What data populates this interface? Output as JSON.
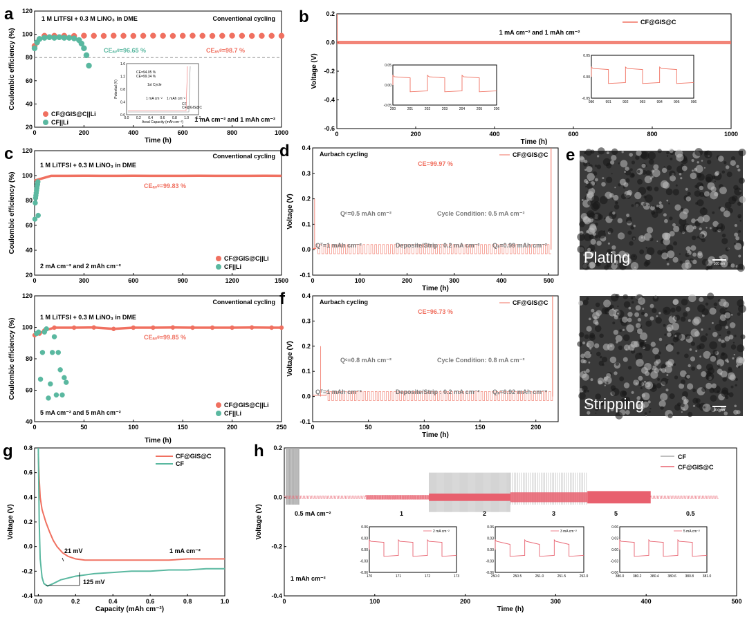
{
  "chart_data": [
    {
      "id": "a",
      "panel_letter": "a",
      "type": "scatter",
      "ylabel": "Coulombic efficiency (%)",
      "xlabel": "Time (h)",
      "xlim": [
        0,
        1000
      ],
      "ylim": [
        20,
        120
      ],
      "xticks": [
        0,
        200,
        400,
        600,
        800,
        1000
      ],
      "yticks": [
        20,
        40,
        60,
        80,
        100,
        120
      ],
      "annotations": {
        "electrolyte": "1 M  LiTFSI + 0.3 M LiNO₃ in DME",
        "mode": "Conventional cycling",
        "ce_cf": "CEₐᵥᵍ=96.65 %",
        "ce_gis": "CEₐᵥᵍ=98.7 %",
        "condition": "1 mA cm⁻² and 1 mAh cm⁻²"
      },
      "reference_line": 80,
      "series": [
        {
          "name": "CF@GIS@C||Li",
          "color": "#f07060",
          "x": [
            0,
            40,
            80,
            120,
            160,
            200,
            240,
            280,
            320,
            360,
            400,
            440,
            480,
            520,
            560,
            600,
            640,
            680,
            720,
            760,
            800,
            840,
            880,
            920,
            960,
            1000
          ],
          "y": [
            90,
            98.7,
            98.7,
            98.7,
            98.6,
            98.8,
            98.7,
            98.6,
            98.8,
            98.7,
            98.6,
            98.7,
            98.8,
            98.7,
            98.6,
            98.7,
            98.8,
            98.7,
            98.6,
            98.7,
            98.8,
            98.7,
            98.6,
            98.7,
            98.7,
            98.7
          ]
        },
        {
          "name": "CF||Li",
          "color": "#5ab8a0",
          "x": [
            0,
            10,
            20,
            40,
            60,
            80,
            100,
            120,
            140,
            160,
            180,
            190,
            200,
            210,
            220
          ],
          "y": [
            88,
            93,
            96,
            97,
            97.5,
            97,
            97.5,
            97,
            97,
            96.5,
            95,
            92,
            88,
            82,
            73
          ]
        }
      ],
      "inset": {
        "title": "1st Cycle",
        "note_a": "CE=94.05 %",
        "note_b": "CE=99.34 %",
        "current": "1 mA cm⁻²",
        "capacity": "1 mAh cm⁻²",
        "xlabel": "Areal Capacity (mAh cm⁻²)",
        "ylabel": "Potential (V)",
        "xlim": [
          0,
          1.2
        ],
        "xticks": [
          "0.0",
          "0.2",
          "0.4",
          "0.6",
          "0.8",
          "1.0",
          "1.2"
        ],
        "ylim": [
          0,
          1.6
        ],
        "yticks": [
          "0.0",
          "0.4",
          "0.8",
          "1.2",
          "1.6"
        ],
        "legend": [
          "CF",
          "CF@GIS@C"
        ]
      }
    },
    {
      "id": "b",
      "panel_letter": "b",
      "type": "line",
      "ylabel": "Voltage (V)",
      "xlabel": "Time (h)",
      "xlim": [
        0,
        1000
      ],
      "ylim": [
        -0.6,
        0.2
      ],
      "xticks": [
        0,
        200,
        400,
        600,
        800,
        1000
      ],
      "yticks": [
        -0.6,
        -0.4,
        -0.2,
        0.0,
        0.2
      ],
      "series": [
        {
          "name": "CF@GIS@C",
          "color": "#f07060",
          "amplitude": 0.012
        }
      ],
      "condition": "1 mA cm⁻² and 1 mAh cm⁻²",
      "insets": [
        {
          "xticks": [
            "200",
            "201",
            "202",
            "203",
            "204",
            "205",
            "206"
          ],
          "yticks": [
            "0.05",
            "0.00",
            "-0.05"
          ]
        },
        {
          "xticks": [
            "990",
            "991",
            "992",
            "993",
            "994",
            "995",
            "996"
          ],
          "yticks": [
            "0.05",
            "0.00",
            "-0.05"
          ]
        }
      ]
    },
    {
      "id": "c1",
      "panel_letter": "c",
      "type": "scatter",
      "ylabel": "Coulombic efficiency (%)",
      "xlabel": "",
      "xlim": [
        0,
        1500
      ],
      "ylim": [
        20,
        120
      ],
      "xticks": [
        0,
        300,
        600,
        900,
        1200,
        1500
      ],
      "yticks": [
        20,
        40,
        60,
        80,
        100,
        120
      ],
      "annotations": {
        "electrolyte": "1 M  LiTFSI + 0.3 M LiNO₃ in DME",
        "mode": "Conventional cycling",
        "ce": "CEₐᵥᵍ=99.83 %",
        "condition": "2 mA cm⁻² and 2 mAh cm⁻²"
      },
      "series": [
        {
          "name": "CF@GIS@C||Li",
          "color": "#f07060",
          "x": [
            0,
            100,
            200,
            300,
            400,
            500,
            600,
            700,
            800,
            900,
            1000,
            1100,
            1200,
            1300,
            1400,
            1500
          ],
          "y": [
            96,
            99.8,
            99.8,
            99.9,
            99.8,
            99.8,
            99.9,
            99.8,
            99.8,
            99.8,
            99.9,
            99.8,
            99.8,
            99.8,
            99.9,
            99.8
          ]
        },
        {
          "name": "CF||Li",
          "color": "#5ab8a0",
          "x": [
            2,
            4,
            6,
            8,
            10,
            12,
            14,
            16,
            18,
            20,
            22
          ],
          "y": [
            65,
            78,
            82,
            84,
            86,
            88,
            90,
            92,
            93,
            95,
            68
          ]
        }
      ]
    },
    {
      "id": "c2",
      "panel_letter": "",
      "type": "scatter",
      "ylabel": "Coulombic efficiency (%)",
      "xlabel": "Time (h)",
      "xlim": [
        0,
        250
      ],
      "ylim": [
        40,
        120
      ],
      "xticks": [
        0,
        50,
        100,
        150,
        200,
        250
      ],
      "yticks": [
        40,
        60,
        80,
        100,
        120
      ],
      "annotations": {
        "electrolyte": "1 M  LiTFSI + 0.3 M LiNO₃ in DME",
        "mode": "Conventional cycling",
        "ce": "CEₐᵥᵍ=99.85 %",
        "condition": "5 mA cm⁻² and 5 mAh cm⁻²"
      },
      "series": [
        {
          "name": "CF@GIS@C||Li",
          "color": "#f07060",
          "x": [
            0,
            5,
            10,
            20,
            40,
            60,
            80,
            100,
            120,
            140,
            160,
            180,
            200,
            220,
            240,
            250
          ],
          "y": [
            95,
            96,
            98,
            99.8,
            99.8,
            99.9,
            99,
            99.8,
            99.8,
            99.9,
            99.8,
            99.8,
            99.8,
            99.9,
            99.8,
            99.8
          ]
        },
        {
          "name": "CF||Li",
          "color": "#5ab8a0",
          "x": [
            2,
            4,
            6,
            8,
            10,
            12,
            14,
            16,
            18,
            20,
            22,
            24,
            26,
            28,
            30,
            32
          ],
          "y": [
            96,
            97,
            67,
            84,
            97,
            99,
            55,
            64,
            84,
            94,
            57,
            84,
            73,
            57,
            68,
            65
          ]
        }
      ]
    },
    {
      "id": "d",
      "panel_letter": "d",
      "type": "line",
      "ylabel": "Voltage (V)",
      "xlabel": "Time (h)",
      "xlim": [
        0,
        520
      ],
      "ylim": [
        -0.1,
        0.4
      ],
      "xticks": [
        0,
        100,
        200,
        300,
        400,
        500
      ],
      "yticks": [
        -0.1,
        0.0,
        0.1,
        0.2,
        0.3,
        0.4
      ],
      "series": [
        {
          "name": "CF@GIS@C",
          "color": "#f07060"
        }
      ],
      "annotations": {
        "mode": "Aurbach cycling",
        "ce": "CE=99.97 %",
        "qc": "Qᶜ=0.5 mAh cm⁻²",
        "cond": "Cycle Condition: 0.5 mA cm⁻²",
        "qt": "Qᵀ=1 mAh cm⁻²",
        "ds": "Deposite/Strip : 0.2 mA cm⁻²",
        "qs": "Qₛ=0.99 mAh cm⁻²"
      }
    },
    {
      "id": "f",
      "panel_letter": "f",
      "type": "line",
      "ylabel": "Voltage (V)",
      "xlabel": "Time (h)",
      "xlim": [
        0,
        220
      ],
      "ylim": [
        -0.1,
        0.4
      ],
      "xticks": [
        0,
        50,
        100,
        150,
        200
      ],
      "yticks": [
        -0.1,
        0.0,
        0.1,
        0.2,
        0.3,
        0.4
      ],
      "series": [
        {
          "name": "CF@GIS@C",
          "color": "#f07060"
        }
      ],
      "annotations": {
        "mode": "Aurbach cycling",
        "ce": "CE=96.73 %",
        "qc": "Qᶜ=0.8 mAh cm⁻²",
        "cond": "Cycle Condition: 0.8 mA cm⁻²",
        "qt": "Qᵀ=1 mAh cm⁻²",
        "ds": "Deposite/Strip : 0.2 mA cm⁻²",
        "qs": "Qₛ=0.92 mAh cm⁻²"
      }
    },
    {
      "id": "g",
      "panel_letter": "g",
      "type": "line",
      "ylabel": "Voltage (V)",
      "xlabel": "Capacity (mAh cm⁻²)",
      "xlim": [
        -0.02,
        1.0
      ],
      "ylim": [
        -0.4,
        0.8
      ],
      "xticks": [
        0.0,
        0.2,
        0.4,
        0.6,
        0.8,
        1.0
      ],
      "yticks": [
        -0.4,
        -0.2,
        0.0,
        0.2,
        0.4,
        0.6,
        0.8
      ],
      "series": [
        {
          "name": "CF@GIS@C",
          "color": "#f07060",
          "x": [
            0,
            0.005,
            0.01,
            0.02,
            0.04,
            0.06,
            0.08,
            0.1,
            0.13,
            0.16,
            0.2,
            0.25,
            0.3,
            0.4,
            0.5,
            0.6,
            0.7,
            0.8,
            0.9,
            1.0
          ],
          "y": [
            0.75,
            0.55,
            0.4,
            0.3,
            0.2,
            0.12,
            0.05,
            0.0,
            -0.05,
            -0.08,
            -0.1,
            -0.11,
            -0.11,
            -0.11,
            -0.11,
            -0.11,
            -0.11,
            -0.1,
            -0.1,
            -0.1
          ]
        },
        {
          "name": "CF",
          "color": "#5ab8a0",
          "x": [
            0,
            0.005,
            0.01,
            0.02,
            0.03,
            0.05,
            0.08,
            0.12,
            0.2,
            0.3,
            0.4,
            0.5,
            0.6,
            0.7,
            0.8,
            0.9,
            1.0
          ],
          "y": [
            0.8,
            0.2,
            -0.1,
            -0.25,
            -0.3,
            -0.32,
            -0.3,
            -0.27,
            -0.24,
            -0.22,
            -0.21,
            -0.2,
            -0.2,
            -0.19,
            -0.19,
            -0.18,
            -0.18
          ]
        }
      ],
      "annotations": {
        "mv_a": "21 mV",
        "mv_b": "125 mV",
        "current": "1 mA cm⁻²"
      }
    },
    {
      "id": "h",
      "panel_letter": "h",
      "type": "line",
      "ylabel": "Voltage (V)",
      "xlabel": "Time (h)",
      "xlim": [
        0,
        500
      ],
      "ylim": [
        -0.4,
        0.2
      ],
      "xticks": [
        0,
        100,
        200,
        300,
        400,
        500
      ],
      "yticks": [
        -0.4,
        -0.2,
        0.0,
        0.2
      ],
      "series": [
        {
          "name": "CF",
          "color": "#aaaaaa"
        },
        {
          "name": "CF@GIS@C",
          "color": "#e8606e"
        }
      ],
      "rate_labels": [
        "0.5 mA cm⁻²",
        "1",
        "2",
        "3",
        "5",
        "0.5"
      ],
      "capacity": "1 mAh cm⁻²",
      "insets": [
        {
          "legend": "2 mA cm⁻²",
          "xticks": [
            "170",
            "171",
            "172",
            "173"
          ],
          "yticks": [
            "0.06",
            "0.03",
            "0.00",
            "-0.03",
            "-0.06"
          ]
        },
        {
          "legend": "3 mA cm⁻²",
          "xticks": [
            "250.0",
            "250.5",
            "251.0",
            "251.5",
            "252.0"
          ],
          "yticks": [
            "0.06",
            "0.03",
            "0.00",
            "-0.03",
            "-0.06"
          ]
        },
        {
          "legend": "5 mA cm⁻²",
          "xticks": [
            "380.0",
            "380.2",
            "380.4",
            "380.6",
            "380.8",
            "381.0"
          ],
          "yticks": [
            "0.06",
            "0.03",
            "0.00",
            "-0.03",
            "-0.06"
          ]
        }
      ]
    }
  ],
  "images": {
    "plating_label": "Plating",
    "stripping_label": "Stripping",
    "scale_a": "100 nm",
    "scale_b": "100 nm"
  }
}
